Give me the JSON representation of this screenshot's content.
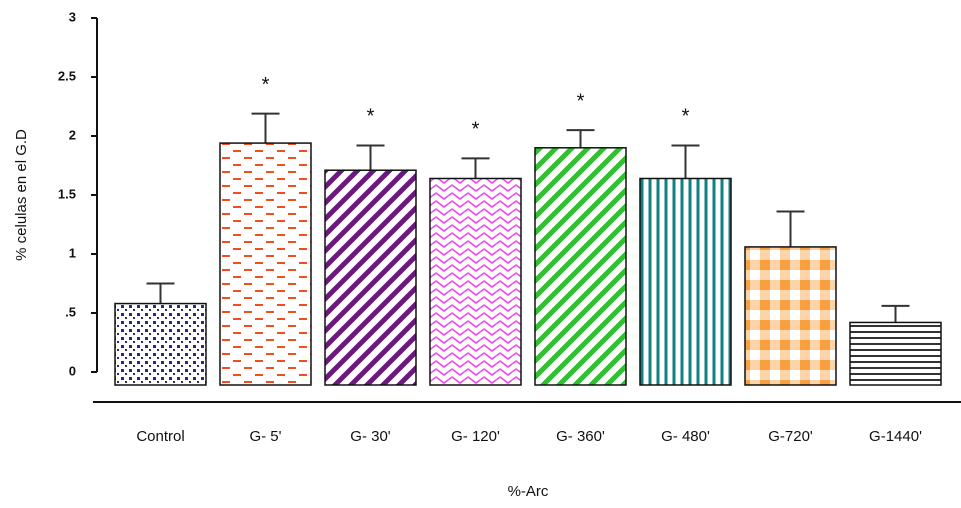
{
  "chart_data": {
    "type": "bar",
    "categories": [
      "Control",
      "G- 5'",
      "G- 30'",
      "G- 120'",
      "G- 360'",
      "G- 480'",
      "G-720'",
      "G-1440'"
    ],
    "values": [
      0.58,
      1.94,
      1.71,
      1.64,
      1.9,
      1.64,
      1.06,
      0.42
    ],
    "errors": [
      0.17,
      0.25,
      0.21,
      0.17,
      0.15,
      0.28,
      0.3,
      0.14
    ],
    "annotations": [
      null,
      "*",
      "*",
      "*",
      "*",
      "*",
      null,
      null
    ],
    "colors": [
      "#2a2a8a",
      "#f05020",
      "#6a1a7a",
      "#f040f0",
      "#30c030",
      "#108080",
      "#f8a040",
      "#333333"
    ],
    "patterns": [
      "dots",
      "dashes",
      "diagonal",
      "wavy",
      "diagonal",
      "vertical",
      "checker",
      "horizontal"
    ],
    "ylim": [
      0,
      3
    ],
    "yticks": [
      0,
      {
        "value": 0.5,
        "label": ".5"
      },
      1,
      1.5,
      2,
      2.5,
      3
    ],
    "ylabel": "% celulas en el G.D",
    "xlabel": "%-Arc"
  }
}
